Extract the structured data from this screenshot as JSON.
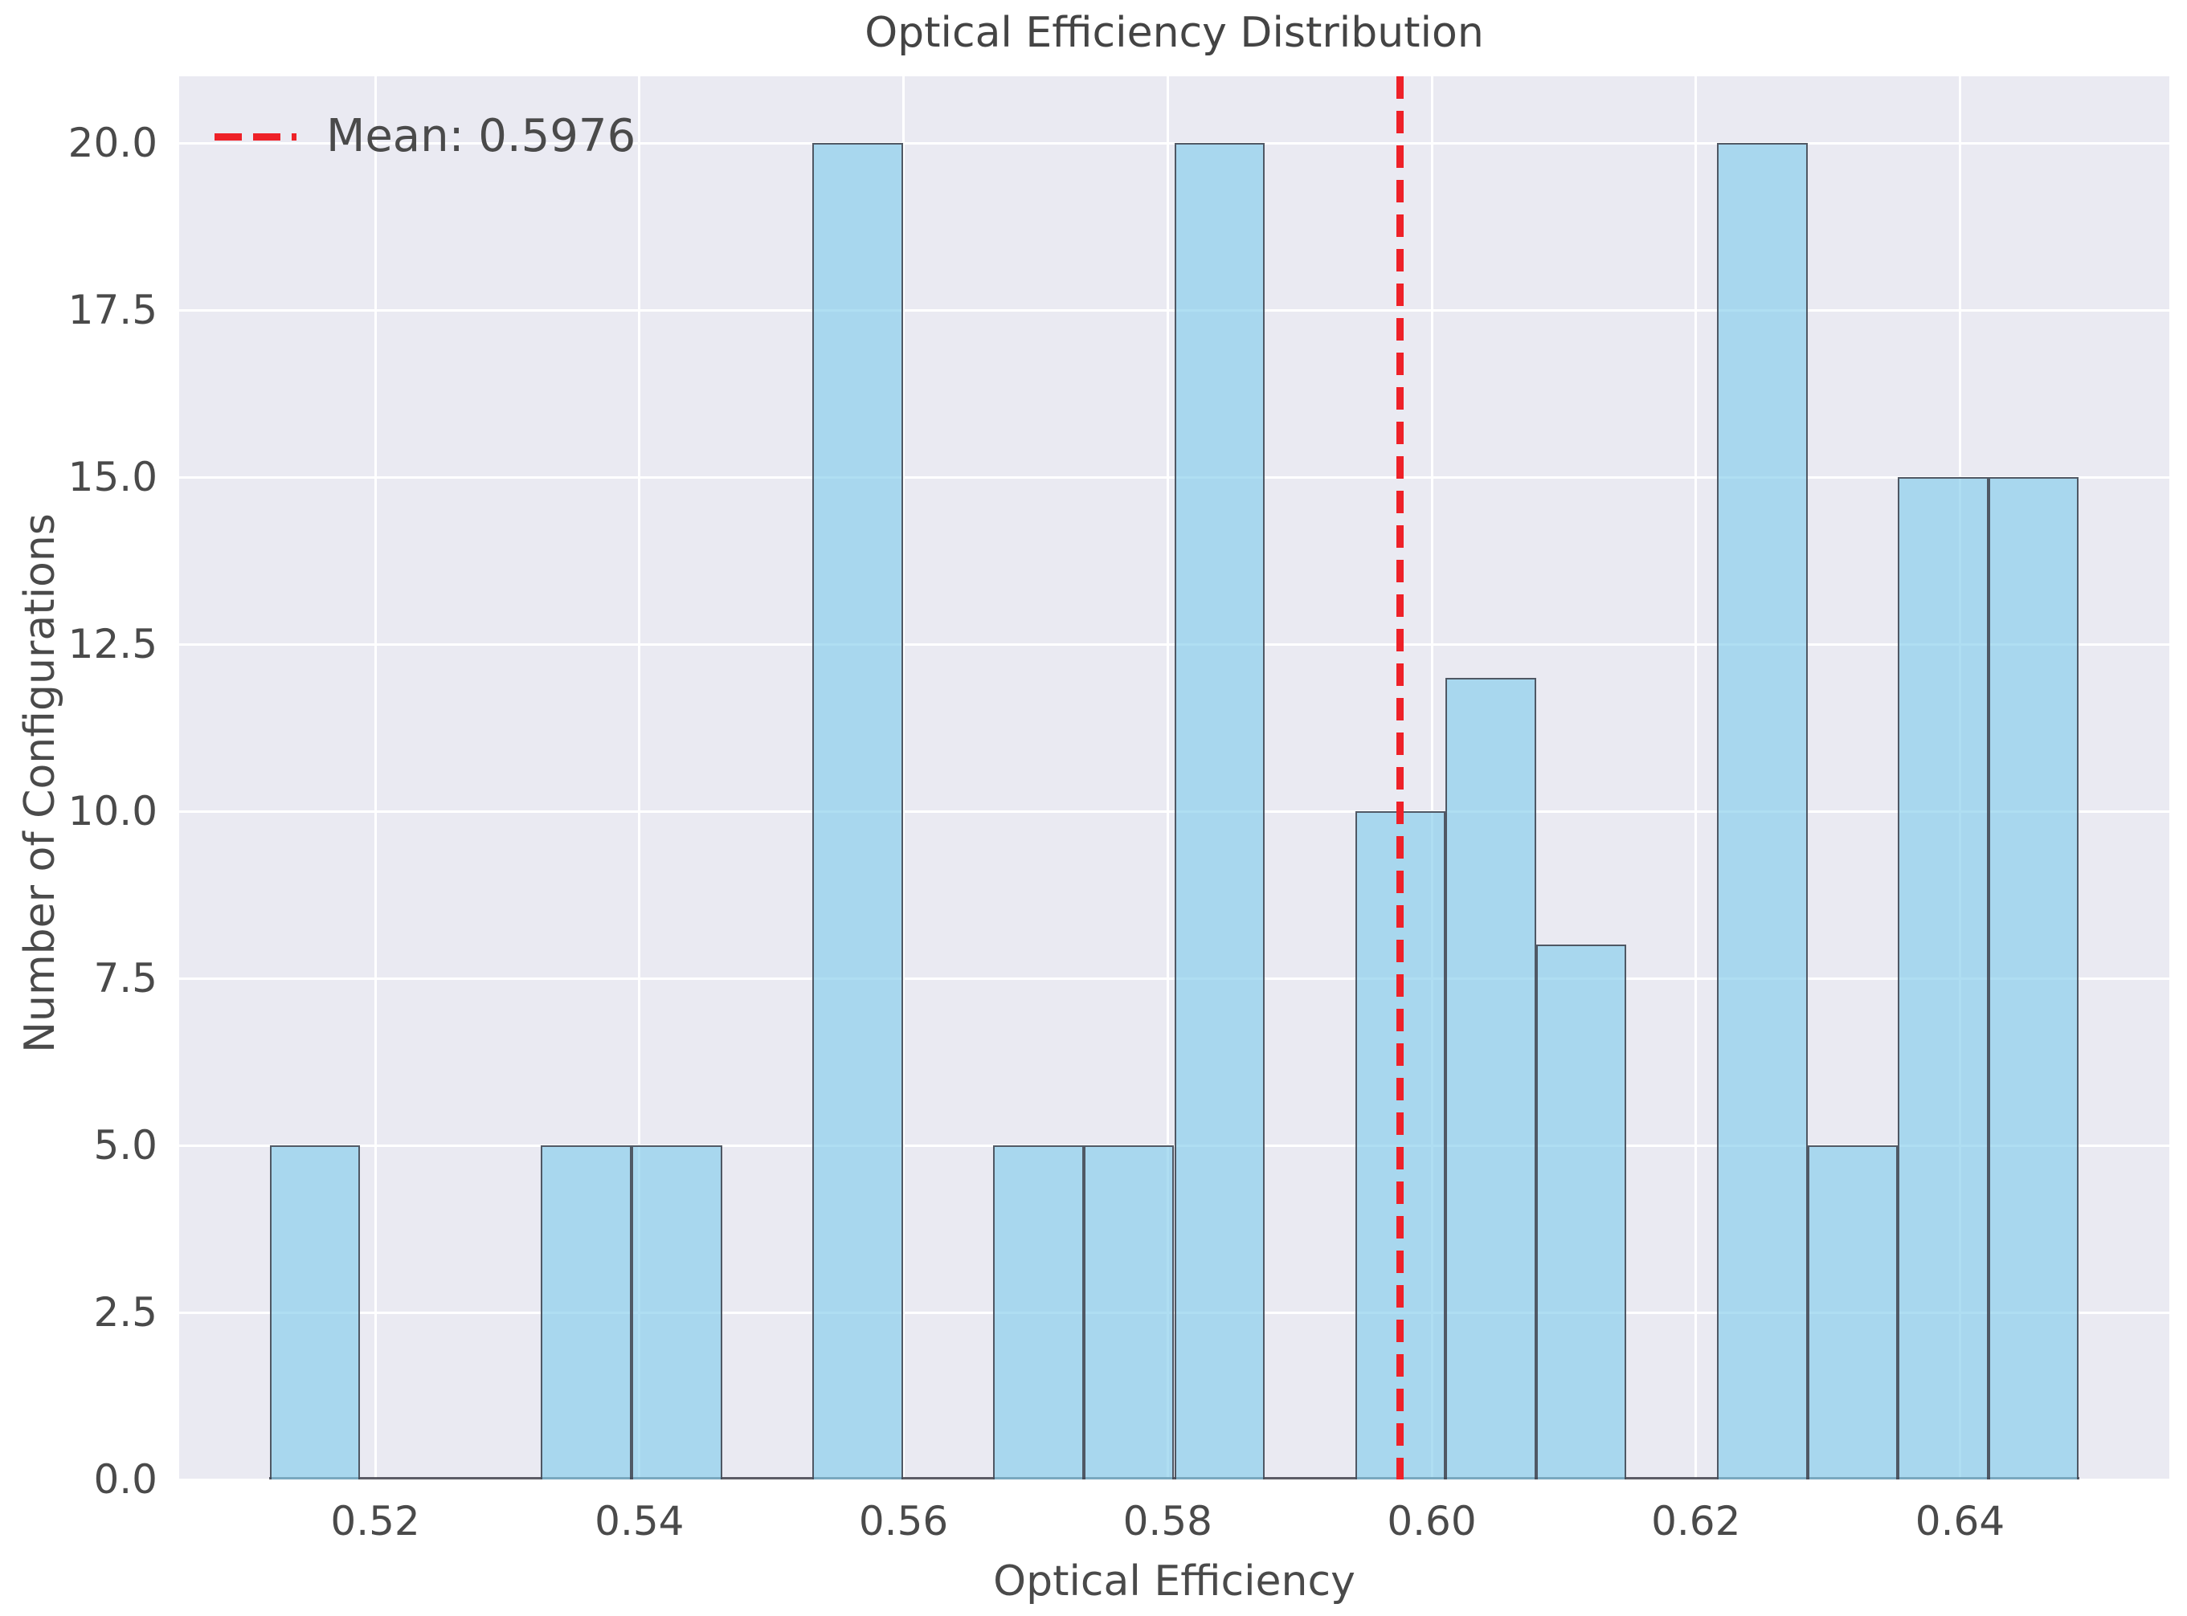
{
  "chart_data": {
    "type": "bar",
    "subtype": "histogram",
    "title": "Optical Efficiency Distribution",
    "xlabel": "Optical Efficiency",
    "ylabel": "Number of Configurations",
    "bin_start": 0.512,
    "bin_width": 0.00685,
    "bin_counts": [
      5,
      0,
      0,
      5,
      5,
      0,
      20,
      0,
      5,
      5,
      20,
      0,
      10,
      12,
      8,
      0,
      20,
      5,
      15,
      15
    ],
    "mean": 0.5976,
    "mean_label": "Mean: 0.5976",
    "xlim": [
      0.50515,
      0.65585
    ],
    "ylim": [
      0,
      21
    ],
    "xticks": [
      0.52,
      0.54,
      0.56,
      0.58,
      0.6,
      0.62,
      0.64
    ],
    "xtick_labels": [
      "0.52",
      "0.54",
      "0.56",
      "0.58",
      "0.60",
      "0.62",
      "0.64"
    ],
    "yticks": [
      0,
      2.5,
      5,
      7.5,
      10,
      12.5,
      15,
      17.5,
      20
    ],
    "ytick_labels": [
      "0.0",
      "2.5",
      "5.0",
      "7.5",
      "10.0",
      "12.5",
      "15.0",
      "17.5",
      "20.0"
    ],
    "grid": true,
    "legend_position": "upper-left",
    "colors": {
      "figure_background": "#ffffff",
      "plot_background": "#eaeaf2",
      "gridline": "#ffffff",
      "bar_fill": "#87ceeb",
      "bar_fill_alpha": 0.67,
      "bar_edge": "#3c3c45",
      "bar_edge_alpha": 0.82,
      "mean_line": "#ee2128",
      "text": "#4a4a4a"
    }
  }
}
